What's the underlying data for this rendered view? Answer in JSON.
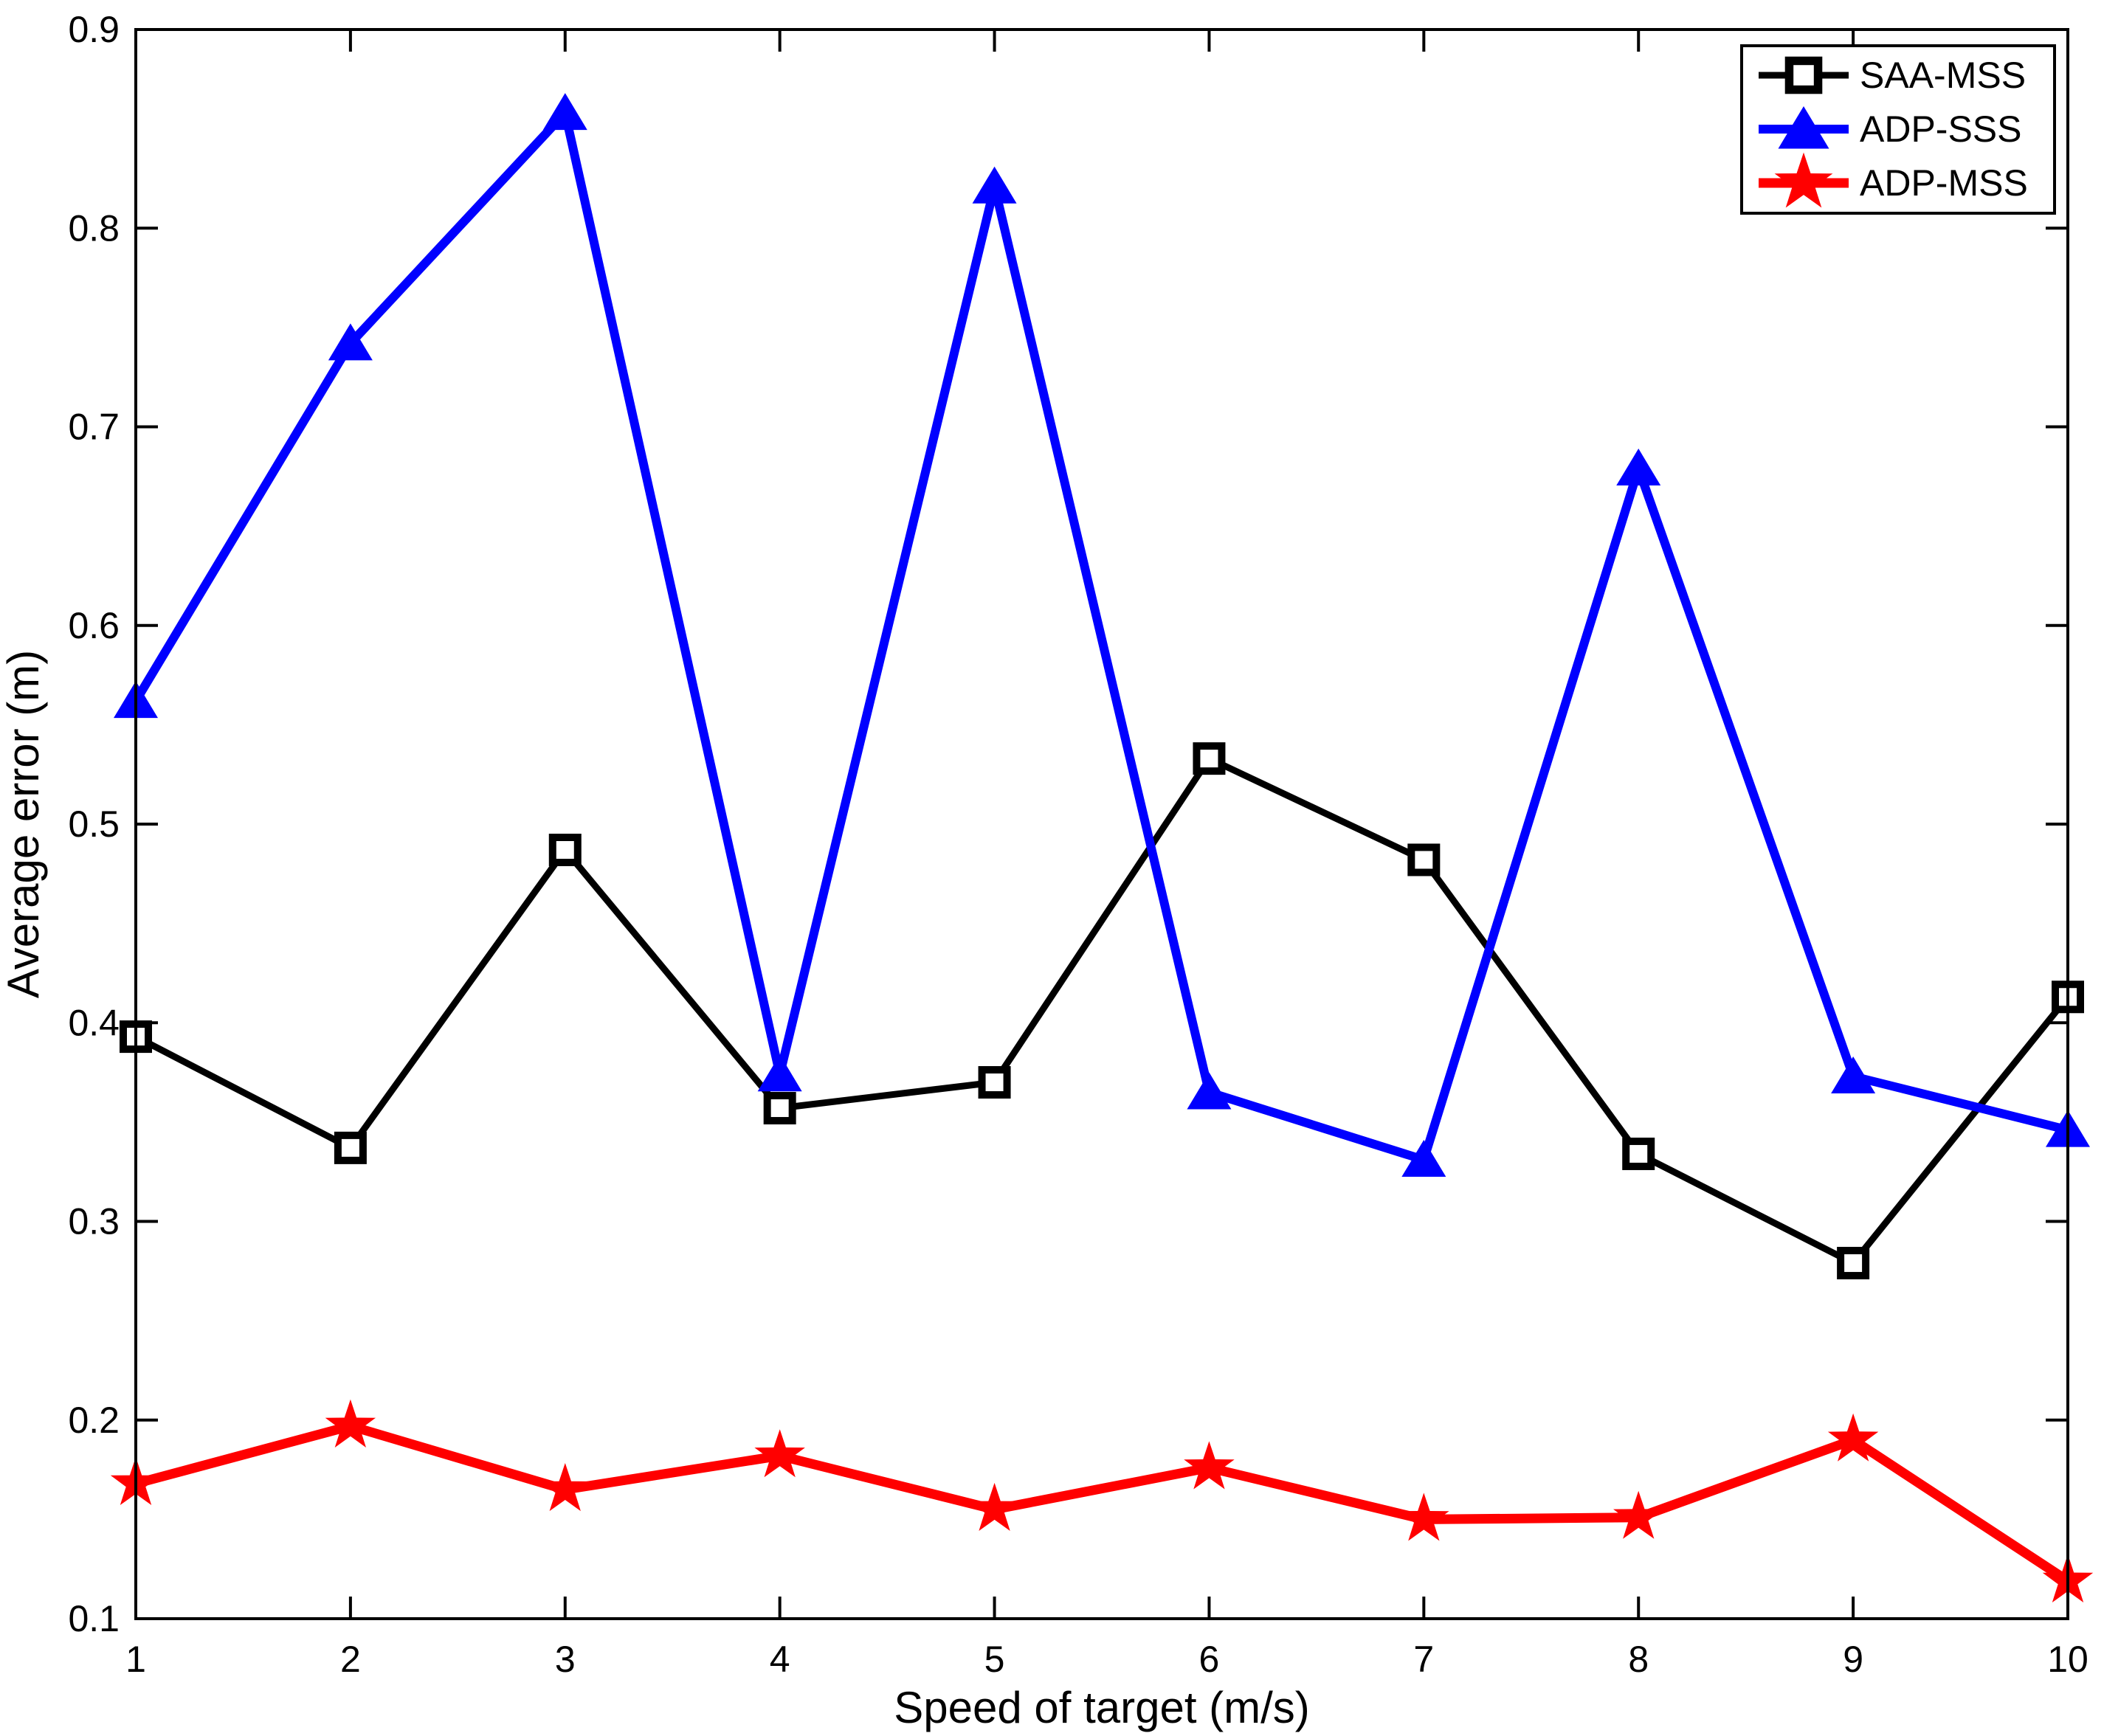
{
  "chart_data": {
    "type": "line",
    "title": "",
    "xlabel": "Speed of target (m/s)",
    "ylabel": "Average error (m)",
    "xlim": [
      1,
      10
    ],
    "ylim": [
      0.1,
      0.9
    ],
    "grid": false,
    "legend_position": "top-right",
    "x": [
      1,
      2,
      3,
      4,
      5,
      6,
      7,
      8,
      9,
      10
    ],
    "x_tick_labels": [
      "1",
      "2",
      "3",
      "4",
      "5",
      "6",
      "7",
      "8",
      "9",
      "10"
    ],
    "y_ticks": [
      0.1,
      0.2,
      0.3,
      0.4,
      0.5,
      0.6,
      0.7,
      0.8,
      0.9
    ],
    "y_tick_labels": [
      "0.1",
      "0.2",
      "0.3",
      "0.4",
      "0.5",
      "0.6",
      "0.7",
      "0.8",
      "0.9"
    ],
    "series": [
      {
        "name": "SAA-MSS",
        "color": "#000000",
        "marker": "square-open",
        "line_width": 9,
        "values": [
          0.393,
          0.337,
          0.487,
          0.357,
          0.37,
          0.533,
          0.482,
          0.334,
          0.279,
          0.413
        ]
      },
      {
        "name": "ADP-SSS",
        "color": "#0000FF",
        "marker": "triangle-up",
        "line_width": 12,
        "values": [
          0.562,
          0.742,
          0.858,
          0.374,
          0.821,
          0.365,
          0.331,
          0.679,
          0.373,
          0.346
        ]
      },
      {
        "name": "ADP-MSS",
        "color": "#FF0000",
        "marker": "pentagram",
        "line_width": 13,
        "values": [
          0.168,
          0.197,
          0.165,
          0.182,
          0.155,
          0.176,
          0.15,
          0.151,
          0.19,
          0.119
        ]
      }
    ]
  }
}
